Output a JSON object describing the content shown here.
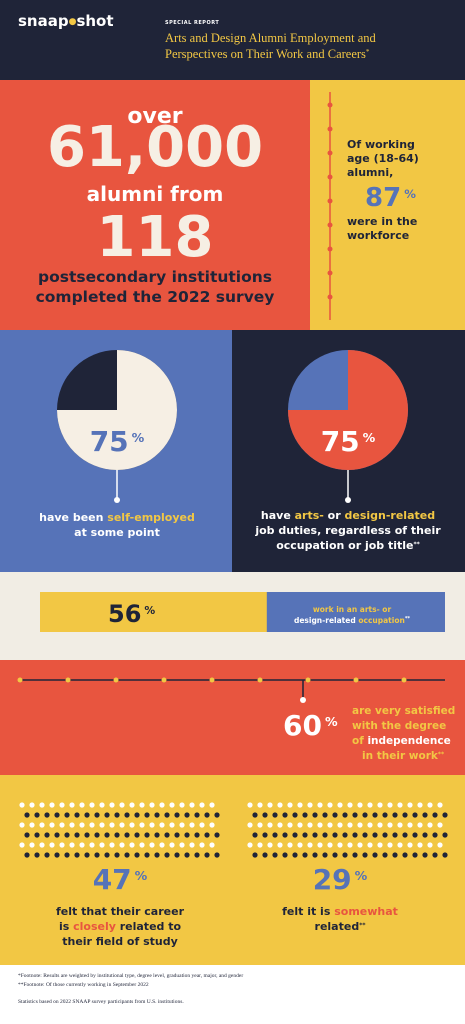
{
  "header": {
    "brand": "snaap",
    "brand2": "shot",
    "kicker": "SPECIAL REPORT",
    "title_lines": [
      "Arts and Design Alumni Employment and",
      "Perspectives on Their Work and Careers"
    ],
    "mark": "*"
  },
  "percent": "%",
  "footnote_marks": {
    "double": "**"
  },
  "intro": {
    "over": "over",
    "alumni": "61,000",
    "alumni_from": "alumni from",
    "institutions": "118",
    "lines": [
      "postsecondary institutions",
      "completed the 2022 survey"
    ]
  },
  "workforce": {
    "lines": [
      "Of working",
      "age (18-64)",
      "alumni,"
    ],
    "value": 87,
    "after": [
      "were in the",
      "workforce"
    ]
  },
  "self_employed": {
    "value": 75,
    "caption": [
      "have been ",
      "self-employed",
      "at some point"
    ]
  },
  "duties": {
    "value": 75,
    "caption": [
      "have ",
      "arts-",
      " or ",
      "design-related",
      "job duties, regardless of their",
      "occupation or job title"
    ]
  },
  "occupation": {
    "value": 56,
    "caption": [
      "work in an arts- or",
      "design-related ",
      "occupation"
    ]
  },
  "satisfaction": {
    "value": 60,
    "caption": [
      "are very satisfied",
      "with the degree",
      "of ",
      "independence",
      "in their work"
    ]
  },
  "closely": {
    "value": 47,
    "caption": [
      "felt that their career",
      "is ",
      "closely",
      " related to",
      "their field of study"
    ]
  },
  "somewhat": {
    "value": 29,
    "caption": [
      "felt it is ",
      "somewhat",
      "related"
    ]
  },
  "footer": {
    "notes": [
      "*Footnote: Results are weighted by institutional type, degree level, graduation year, major, and gender",
      "**Footnote: Of those currently working in September 2022"
    ],
    "source": "Statistics based on 2022 SNAAP survey participants from U.S. institutions."
  }
}
